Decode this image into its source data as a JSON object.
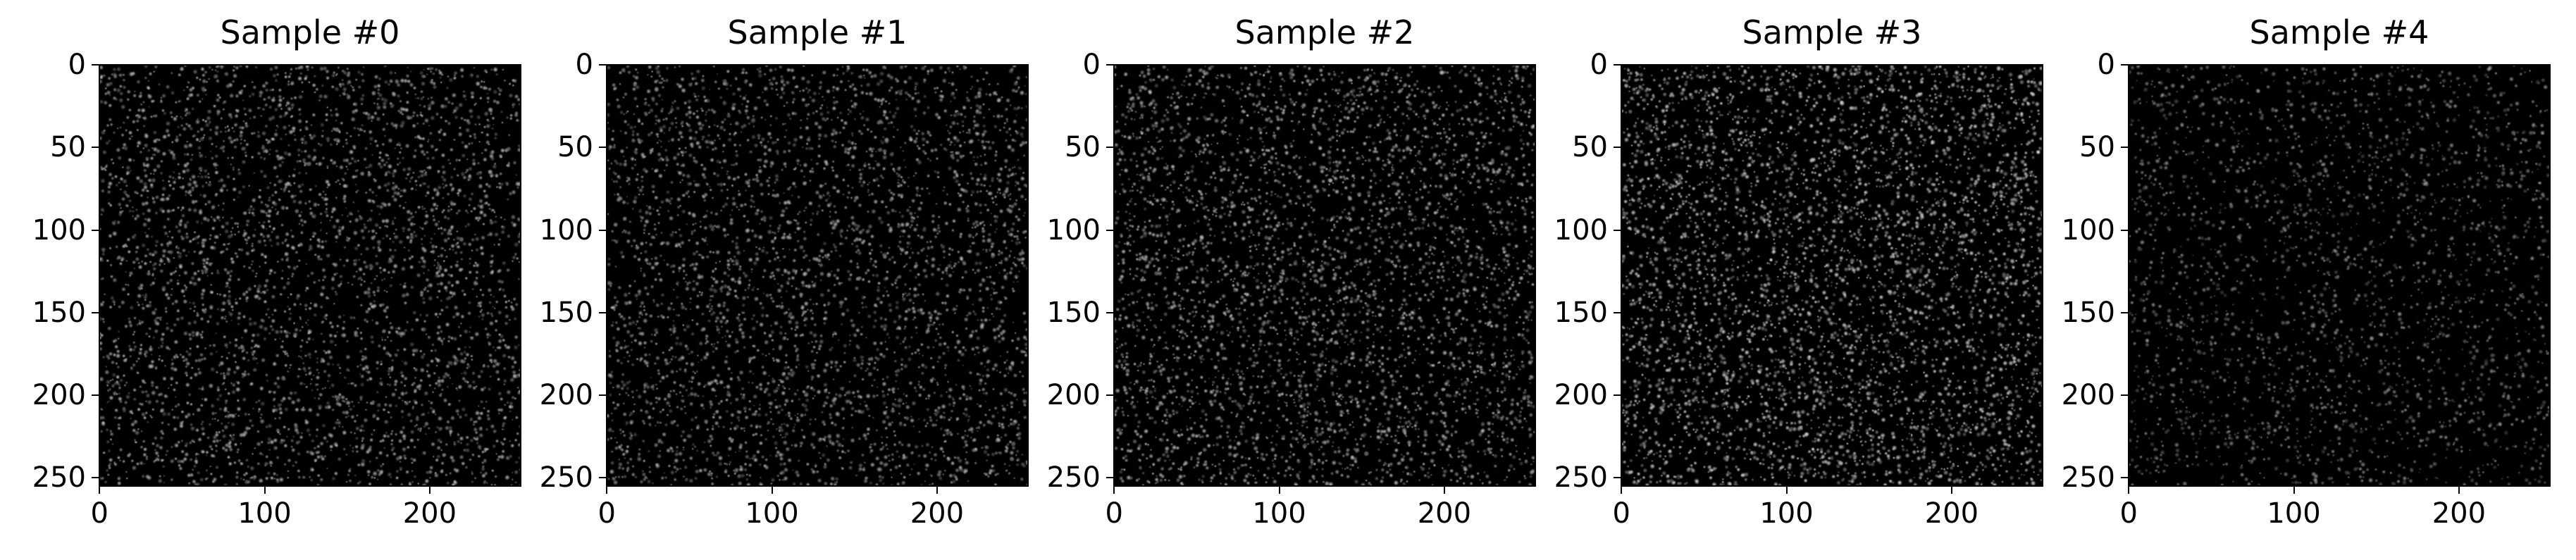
{
  "figure": {
    "panels": [
      {
        "title": "Sample #0",
        "density": 0.06,
        "brightness": 0.78
      },
      {
        "title": "Sample #1",
        "density": 0.058,
        "brightness": 0.74
      },
      {
        "title": "Sample #2",
        "density": 0.062,
        "brightness": 0.78
      },
      {
        "title": "Sample #3",
        "density": 0.07,
        "brightness": 0.88
      },
      {
        "title": "Sample #4",
        "density": 0.04,
        "brightness": 0.6
      }
    ],
    "image_size": 256,
    "colormap": "gray",
    "y_ticks": [
      "0",
      "50",
      "100",
      "150",
      "200",
      "250"
    ],
    "y_tick_values": [
      0,
      50,
      100,
      150,
      200,
      250
    ],
    "x_ticks": [
      "0",
      "100",
      "200"
    ],
    "x_tick_values": [
      0,
      100,
      200
    ]
  }
}
